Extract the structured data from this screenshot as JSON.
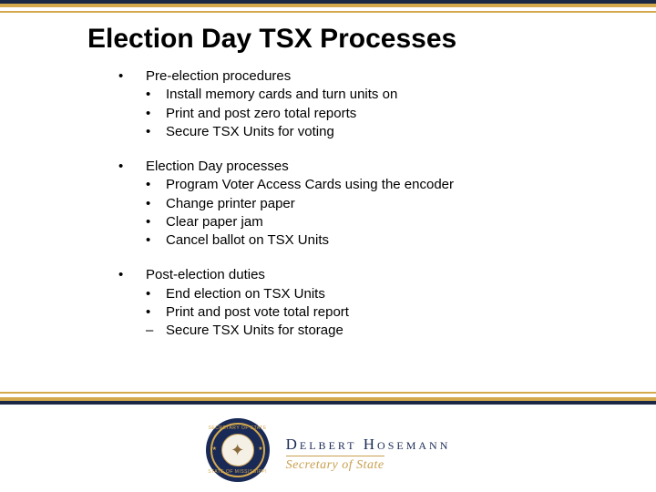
{
  "colors": {
    "navy": "#1a2845",
    "gold": "#d4a94e",
    "gold_text": "#c9a050",
    "seal_navy": "#1a2a56",
    "text": "#000000",
    "background": "#ffffff"
  },
  "typography": {
    "title_fontsize": 30,
    "title_weight": "bold",
    "body_fontsize": 15,
    "name_fontsize": 17,
    "sub_fontsize": 14
  },
  "title": "Election Day TSX Processes",
  "sections": [
    {
      "heading": "Pre-election procedures",
      "items": [
        "Install memory cards and turn units on",
        "Print and post zero total reports",
        "Secure TSX Units for voting"
      ]
    },
    {
      "heading": "Election Day processes",
      "items": [
        "Program Voter Access Cards using the encoder",
        "Change printer paper",
        "Clear paper jam",
        "Cancel ballot on TSX Units"
      ]
    },
    {
      "heading": "Post-election duties",
      "items": [
        "End election on TSX Units",
        "Print and post vote total report",
        "Secure TSX Units for storage"
      ]
    }
  ],
  "bullets": {
    "outer": "•",
    "inner": "•",
    "dash": "–"
  },
  "footer": {
    "name": "Delbert Hosemann",
    "subtitle": "Secretary of State",
    "seal_top": "SECRETARY OF STATE",
    "seal_bottom": "STATE OF MISSISSIPPI"
  }
}
